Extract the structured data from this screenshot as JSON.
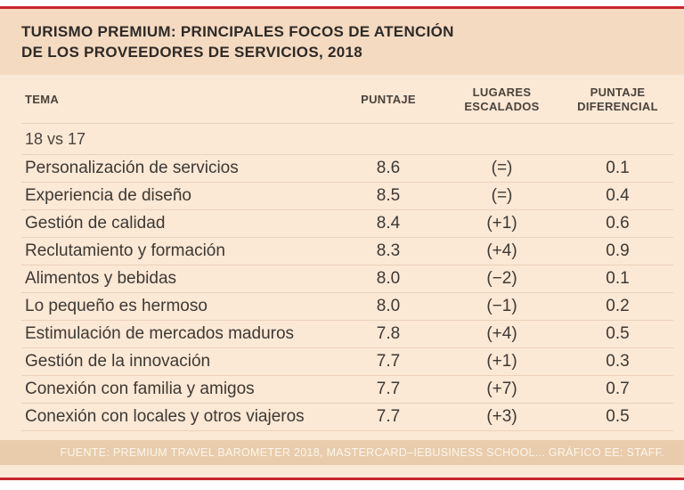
{
  "title": {
    "line1": "TURISMO PREMIUM: PRINCIPALES FOCOS DE ATENCIÓN",
    "line2": "DE LOS PROVEEDORES DE SERVICIOS, 2018"
  },
  "table": {
    "columns": [
      "TEMA",
      "PUNTAJE",
      "LUGARES ESCALADOS",
      "PUNTAJE DIFERENCIAL"
    ],
    "group_label": "18 vs 17",
    "rows": [
      {
        "tema": "Personalización de servicios",
        "puntaje": "8.6",
        "lugares": "(=)",
        "dif": "0.1"
      },
      {
        "tema": "Experiencia de diseño",
        "puntaje": "8.5",
        "lugares": "(=)",
        "dif": "0.4"
      },
      {
        "tema": "Gestión de calidad",
        "puntaje": "8.4",
        "lugares": "(+1)",
        "dif": "0.6"
      },
      {
        "tema": "Reclutamiento y formación",
        "puntaje": "8.3",
        "lugares": "(+4)",
        "dif": "0.9"
      },
      {
        "tema": "Alimentos y bebidas",
        "puntaje": "8.0",
        "lugares": "(−2)",
        "dif": "0.1"
      },
      {
        "tema": "Lo pequeño es hermoso",
        "puntaje": "8.0",
        "lugares": "(−1)",
        "dif": "0.2"
      },
      {
        "tema": "Estimulación de mercados maduros",
        "puntaje": "7.8",
        "lugares": "(+4)",
        "dif": "0.5"
      },
      {
        "tema": "Gestión de la innovación",
        "puntaje": "7.7",
        "lugares": "(+1)",
        "dif": "0.3"
      },
      {
        "tema": "Conexión con familia y amigos",
        "puntaje": "7.7",
        "lugares": "(+7)",
        "dif": "0.7"
      },
      {
        "tema": "Conexión con locales y otros viajeros",
        "puntaje": "7.7",
        "lugares": "(+3)",
        "dif": "0.5"
      }
    ]
  },
  "footer": {
    "text": "FUENTE: PREMIUM TRAVEL BAROMETER 2018, MASTERCARD–IEBUSINESS SCHOOL...  GRÁFICO EE: STAFF."
  },
  "colors": {
    "panel_bg": "#fbe8d5",
    "title_band_bg": "#f4dac1",
    "rule_red": "#c9252c",
    "footer_band_bg": "#e8ccab",
    "row_separator": "#ecd2ba",
    "text_dark": "#3e3933"
  },
  "chart_data": {
    "type": "table",
    "title": "TURISMO PREMIUM: PRINCIPALES FOCOS DE ATENCIÓN DE LOS PROVEEDORES DE SERVICIOS, 2018",
    "columns": [
      "TEMA",
      "PUNTAJE",
      "LUGARES ESCALADOS",
      "PUNTAJE DIFERENCIAL"
    ],
    "group": "18 vs 17",
    "rows": [
      [
        "Personalización de servicios",
        8.6,
        "(=)",
        0.1
      ],
      [
        "Experiencia de diseño",
        8.5,
        "(=)",
        0.4
      ],
      [
        "Gestión de calidad",
        8.4,
        "(+1)",
        0.6
      ],
      [
        "Reclutamiento y formación",
        8.3,
        "(+4)",
        0.9
      ],
      [
        "Alimentos y bebidas",
        8.0,
        "(−2)",
        0.1
      ],
      [
        "Lo pequeño es hermoso",
        8.0,
        "(−1)",
        0.2
      ],
      [
        "Estimulación de mercados maduros",
        7.8,
        "(+4)",
        0.5
      ],
      [
        "Gestión de la innovación",
        7.7,
        "(+1)",
        0.3
      ],
      [
        "Conexión con familia y amigos",
        7.7,
        "(+7)",
        0.7
      ],
      [
        "Conexión con locales y otros viajeros",
        7.7,
        "(+3)",
        0.5
      ]
    ],
    "source": "FUENTE: PREMIUM TRAVEL BAROMETER 2018, MASTERCARD–IEBUSINESS SCHOOL...  GRÁFICO EE: STAFF."
  }
}
